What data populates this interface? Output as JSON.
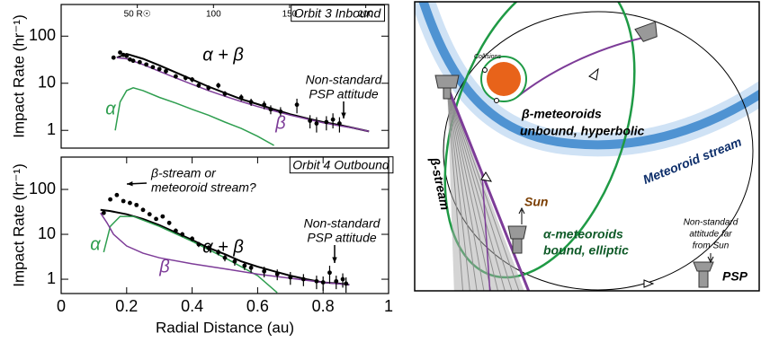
{
  "chart_data": [
    {
      "type": "line",
      "ylabel": "Impact Rate (hr⁻¹)",
      "log_y": true,
      "xlim": [
        0,
        1
      ],
      "ylim": [
        0.42,
        470
      ],
      "yticks": [
        1,
        10,
        100
      ],
      "x2lim": [
        0,
        215
      ],
      "x2ticks": [
        {
          "value": 50,
          "label": "50 R☉"
        },
        100,
        150,
        200
      ],
      "annotations": [
        "Orbit 3 Inbound",
        "α + β",
        "Non-standard",
        "PSP attitude",
        "α",
        "β"
      ],
      "series": [
        {
          "color": "#000000",
          "x": [
            0.17,
            0.2,
            0.25,
            0.3,
            0.35,
            0.4,
            0.45,
            0.5,
            0.55,
            0.6,
            0.65,
            0.7,
            0.75,
            0.8,
            0.85,
            0.9,
            0.94
          ],
          "values": [
            35,
            42,
            33,
            24,
            17,
            12,
            8.5,
            6.2,
            4.6,
            3.6,
            2.8,
            2.2,
            1.8,
            1.5,
            1.3,
            1.1,
            0.95
          ]
        },
        {
          "color": "#2e9e4f",
          "x": [
            0.165,
            0.18,
            0.2,
            0.22,
            0.25,
            0.3,
            0.35,
            0.4,
            0.45,
            0.5,
            0.55,
            0.6,
            0.65
          ],
          "values": [
            1,
            4,
            7,
            8,
            7,
            5,
            3.8,
            2.8,
            2.1,
            1.5,
            1.1,
            0.75,
            0.48
          ]
        },
        {
          "color": "#7d3c98",
          "x": [
            0.17,
            0.2,
            0.25,
            0.3,
            0.35,
            0.4,
            0.45,
            0.5,
            0.55,
            0.6,
            0.65,
            0.7,
            0.75,
            0.8,
            0.85,
            0.9,
            0.94
          ],
          "values": [
            35,
            33,
            25,
            18,
            13,
            9.5,
            7,
            5.3,
            4.1,
            3.2,
            2.6,
            2.1,
            1.75,
            1.45,
            1.25,
            1.1,
            0.95
          ]
        }
      ],
      "points": {
        "color": "#000000",
        "x": [
          0.16,
          0.18,
          0.19,
          0.2,
          0.21,
          0.22,
          0.24,
          0.26,
          0.28,
          0.3,
          0.32,
          0.35,
          0.38,
          0.4,
          0.42,
          0.45,
          0.48,
          0.5,
          0.55,
          0.58,
          0.62,
          0.64,
          0.67,
          0.72,
          0.76,
          0.78,
          0.81,
          0.83,
          0.85
        ],
        "values": [
          35,
          45,
          40,
          38,
          32,
          30,
          28,
          25,
          22,
          20,
          18,
          14,
          13,
          12,
          9,
          8,
          9,
          6,
          5,
          4,
          3.5,
          2.8,
          2.5,
          3.5,
          1.6,
          1.4,
          1.5,
          1.7,
          1.4
        ],
        "errors": [
          2,
          3,
          3,
          3,
          2,
          2,
          2,
          2,
          2,
          2,
          2,
          1.5,
          1.5,
          1.5,
          1,
          1,
          1.2,
          0.8,
          0.8,
          0.7,
          0.7,
          0.6,
          0.6,
          1.2,
          0.5,
          0.5,
          0.5,
          0.6,
          0.5
        ]
      }
    },
    {
      "type": "line",
      "ylabel": "Impact Rate (hr⁻¹)",
      "xlabel": "Radial Distance (au)",
      "log_y": true,
      "xlim": [
        0,
        1
      ],
      "xticks": [
        0,
        0.2,
        0.4,
        0.6,
        0.8,
        1
      ],
      "ylim": [
        0.48,
        525
      ],
      "yticks": [
        1,
        10,
        100
      ],
      "annotations": [
        "Orbit 4 Outbound",
        "β-stream or",
        "meteoroid stream?",
        "α + β",
        "Non-standard",
        "PSP attitude",
        "α",
        "β"
      ],
      "series": [
        {
          "color": "#000000",
          "x": [
            0.12,
            0.15,
            0.2,
            0.25,
            0.3,
            0.35,
            0.4,
            0.45,
            0.5,
            0.55,
            0.6,
            0.65,
            0.7,
            0.75,
            0.8,
            0.85,
            0.88
          ],
          "values": [
            35,
            33,
            28,
            22,
            16,
            11,
            7.5,
            5,
            3.6,
            2.5,
            1.9,
            1.5,
            1.2,
            1.0,
            0.85,
            0.8,
            0.75
          ]
        },
        {
          "color": "#2e9e4f",
          "x": [
            0.13,
            0.15,
            0.18,
            0.22,
            0.3,
            0.4,
            0.5,
            0.6,
            0.66
          ],
          "values": [
            4,
            15,
            25,
            25,
            15,
            7,
            3,
            1.2,
            0.5
          ]
        },
        {
          "color": "#7d3c98",
          "x": [
            0.12,
            0.14,
            0.16,
            0.2,
            0.25,
            0.3,
            0.4,
            0.5,
            0.6,
            0.7,
            0.8,
            0.88
          ],
          "values": [
            30,
            18,
            10,
            5.5,
            3.8,
            3,
            2.2,
            1.7,
            1.3,
            1.05,
            0.85,
            0.75
          ]
        }
      ],
      "points": {
        "color": "#000000",
        "x": [
          0.13,
          0.15,
          0.17,
          0.19,
          0.21,
          0.23,
          0.25,
          0.27,
          0.29,
          0.31,
          0.33,
          0.35,
          0.37,
          0.4,
          0.42,
          0.45,
          0.48,
          0.5,
          0.53,
          0.56,
          0.58,
          0.62,
          0.66,
          0.7,
          0.74,
          0.78,
          0.8,
          0.82,
          0.84,
          0.86,
          0.87
        ],
        "values": [
          30,
          60,
          75,
          55,
          50,
          45,
          35,
          28,
          22,
          25,
          18,
          12,
          10,
          8,
          6,
          5,
          4,
          3,
          2.5,
          2,
          1.8,
          1.5,
          1.3,
          1.1,
          1.0,
          0.9,
          0.85,
          1.4,
          0.9,
          1.0,
          0.8
        ],
        "errors": [
          3,
          4,
          5,
          4,
          4,
          3,
          3,
          2,
          2,
          2,
          2,
          1.5,
          1.2,
          1,
          0.8,
          0.7,
          0.6,
          0.5,
          0.5,
          0.4,
          0.4,
          0.4,
          0.35,
          0.35,
          0.3,
          0.3,
          0.3,
          0.6,
          0.3,
          0.35,
          0.3
        ]
      }
    }
  ],
  "diagram": {
    "labels": [
      "Collisions",
      "β-meteoroids",
      "unbound, hyperbolic",
      "Meteoroid stream",
      "β-stream",
      "Sun",
      "α-meteoroids",
      "bound, elliptic",
      "Non-standard",
      "attitude far",
      "from Sun",
      "PSP"
    ]
  }
}
